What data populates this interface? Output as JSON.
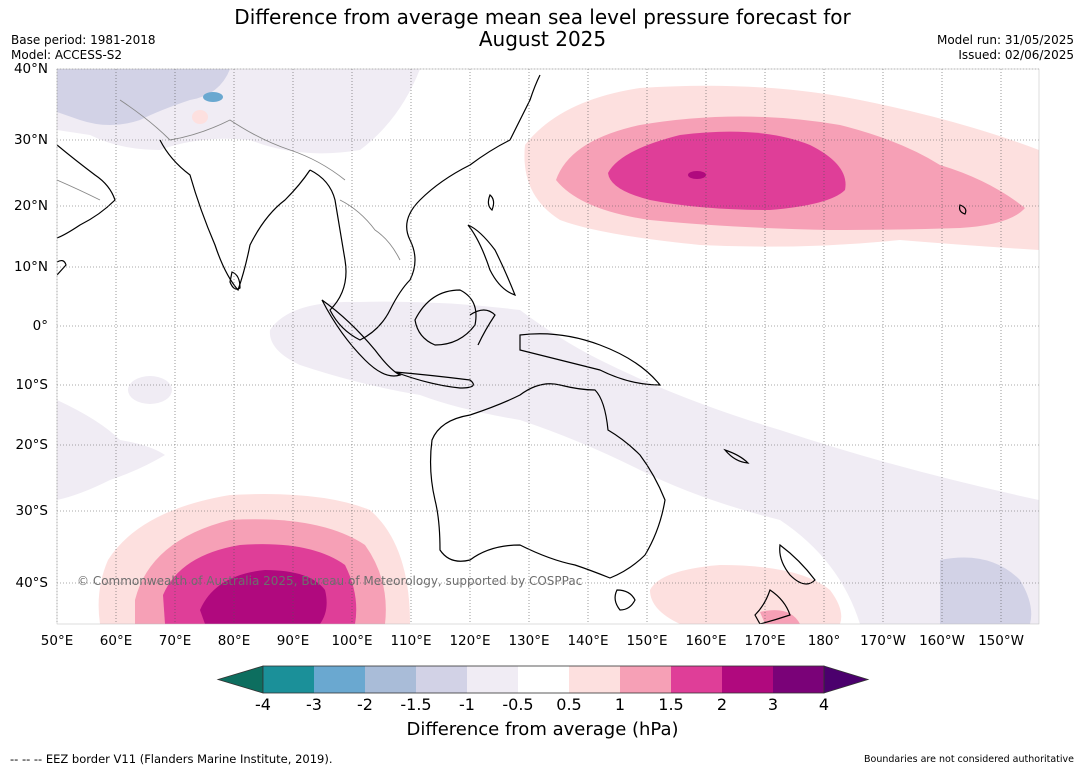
{
  "title_line1": "Difference from average mean sea level pressure forecast for",
  "title_line2": "August 2025",
  "base_period": "Base period: 1981-2018",
  "model": "Model: ACCESS-S2",
  "model_run": "Model run: 31/05/2025",
  "issued": "Issued: 02/06/2025",
  "copyright": "© Commonwealth of Australia 2025, Bureau of Meteorology, supported by COSPPac",
  "latitudes": [
    "40°N",
    "30°N",
    "20°N",
    "10°N",
    "0°",
    "10°S",
    "20°S",
    "30°S",
    "40°S"
  ],
  "longitudes": [
    "50°E",
    "60°E",
    "70°E",
    "80°E",
    "90°E",
    "100°E",
    "110°E",
    "120°E",
    "130°E",
    "140°E",
    "150°E",
    "160°E",
    "170°E",
    "180°",
    "170°W",
    "160°W",
    "150°W"
  ],
  "colorbar": {
    "ticks": [
      "-4",
      "-3",
      "-2",
      "-1.5",
      "-1",
      "-0.5",
      "0.5",
      "1",
      "1.5",
      "2",
      "3",
      "4"
    ],
    "colors": [
      "#0d6e5f",
      "#1b9099",
      "#6aa8d0",
      "#a9bcd8",
      "#d2d2e6",
      "#f0ecf4",
      "#ffffff",
      "#fde0df",
      "#f6a0b6",
      "#df3e98",
      "#b0097e",
      "#7a0278",
      "#4b006d"
    ],
    "title": "Difference from average (hPa)"
  },
  "footer_left": "--  --  -- EEZ border V11 (Flanders Marine Institute, 2019).",
  "footer_right": "Boundaries are not considered authoritative"
}
